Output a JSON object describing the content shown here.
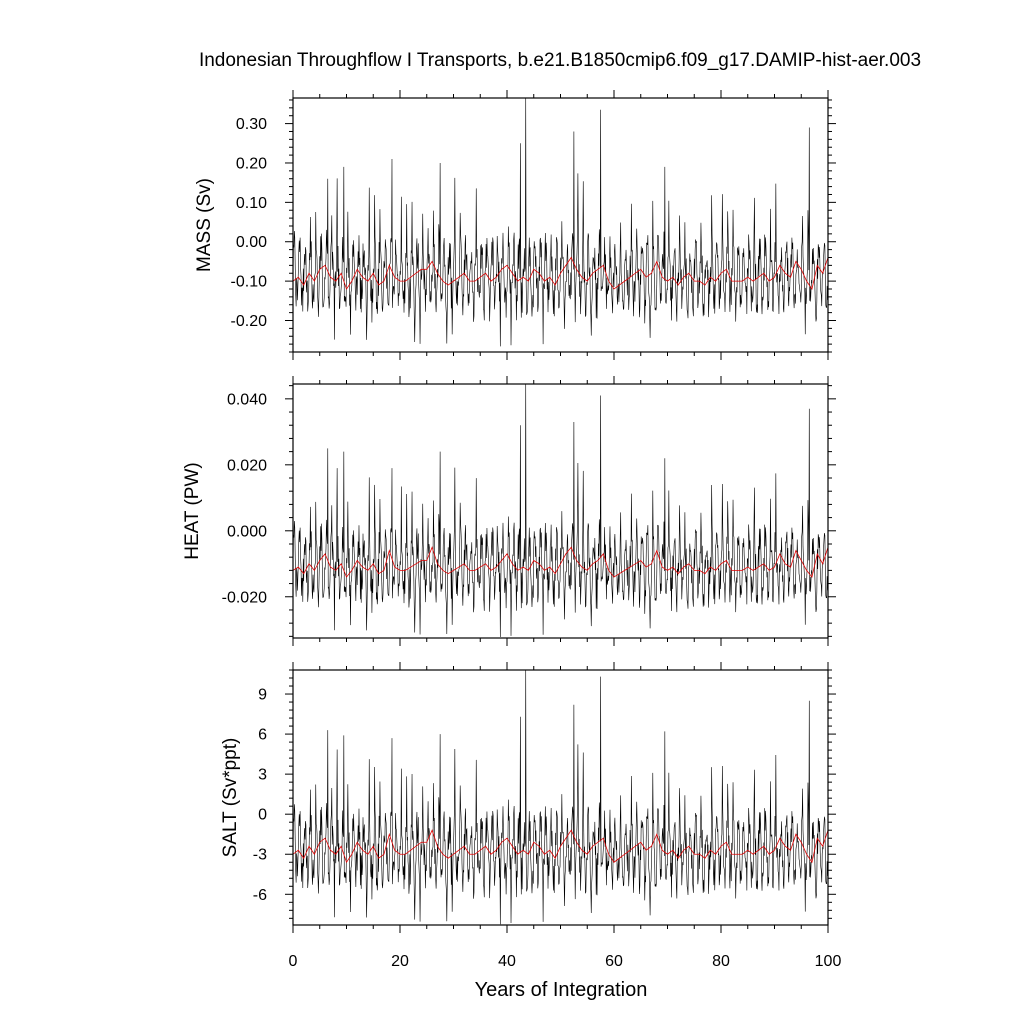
{
  "chart_data": {
    "type": "line",
    "title": "Indonesian Throughflow I Transports, b.e21.B1850cmip6.f09_g17.DAMIP-hist-aer.003",
    "xlabel": "Years of Integration",
    "xlim": [
      0,
      100
    ],
    "x_ticks": [
      0,
      20,
      40,
      60,
      80,
      100
    ],
    "x_tick_labels": [
      "0",
      "20",
      "40",
      "60",
      "80",
      "100"
    ],
    "colors": {
      "monthly": "#000000",
      "annual": "#e00000"
    },
    "panels": [
      {
        "id": "mass",
        "ylabel": "MASS (Sv)",
        "ylim": [
          -0.28,
          0.365
        ],
        "y_ticks": [
          -0.2,
          -0.1,
          0.0,
          0.1,
          0.2,
          0.3
        ],
        "y_tick_labels": [
          "-0.20",
          "-0.10",
          "0.00",
          "0.10",
          "0.20",
          "0.30"
        ],
        "mean": -0.085,
        "amplitude": 0.075,
        "spikes": [
          [
            6,
            0.16
          ],
          [
            9,
            0.19
          ],
          [
            18,
            0.21
          ],
          [
            27,
            0.2
          ],
          [
            42,
            0.25
          ],
          [
            43,
            0.365
          ],
          [
            52,
            0.28
          ],
          [
            57,
            0.335
          ],
          [
            69,
            0.19
          ],
          [
            96,
            0.29
          ]
        ],
        "annual": [
          -0.1,
          -0.09,
          -0.11,
          -0.08,
          -0.1,
          -0.07,
          -0.06,
          -0.09,
          -0.1,
          -0.08,
          -0.12,
          -0.1,
          -0.07,
          -0.09,
          -0.1,
          -0.08,
          -0.11,
          -0.1,
          -0.06,
          -0.09,
          -0.1,
          -0.1,
          -0.09,
          -0.08,
          -0.07,
          -0.07,
          -0.05,
          -0.08,
          -0.1,
          -0.11,
          -0.1,
          -0.09,
          -0.08,
          -0.1,
          -0.1,
          -0.09,
          -0.08,
          -0.1,
          -0.09,
          -0.07,
          -0.06,
          -0.08,
          -0.1,
          -0.09,
          -0.1,
          -0.07,
          -0.08,
          -0.1,
          -0.09,
          -0.11,
          -0.08,
          -0.06,
          -0.04,
          -0.07,
          -0.09,
          -0.1,
          -0.08,
          -0.07,
          -0.06,
          -0.1,
          -0.12,
          -0.11,
          -0.1,
          -0.09,
          -0.08,
          -0.07,
          -0.09,
          -0.08,
          -0.05,
          -0.09,
          -0.1,
          -0.09,
          -0.11,
          -0.09,
          -0.08,
          -0.1,
          -0.1,
          -0.11,
          -0.09,
          -0.1,
          -0.08,
          -0.07,
          -0.1,
          -0.1,
          -0.1,
          -0.09,
          -0.1,
          -0.09,
          -0.08,
          -0.1,
          -0.09,
          -0.06,
          -0.08,
          -0.09,
          -0.05,
          -0.07,
          -0.1,
          -0.12,
          -0.06,
          -0.08,
          -0.04
        ]
      },
      {
        "id": "heat",
        "ylabel": "HEAT (PW)",
        "ylim": [
          -0.0325,
          0.0445
        ],
        "y_ticks": [
          -0.02,
          0.0,
          0.02,
          0.04
        ],
        "y_tick_labels": [
          "-0.020",
          "0.000",
          "0.020",
          "0.040"
        ],
        "mean": -0.0105,
        "amplitude": 0.009,
        "spikes": [
          [
            6,
            0.025
          ],
          [
            9,
            0.024
          ],
          [
            18,
            0.019
          ],
          [
            27,
            0.024
          ],
          [
            42,
            0.032
          ],
          [
            43,
            0.0445
          ],
          [
            52,
            0.033
          ],
          [
            57,
            0.041
          ],
          [
            69,
            0.022
          ],
          [
            96,
            0.037
          ]
        ],
        "annual": [
          -0.012,
          -0.011,
          -0.013,
          -0.01,
          -0.012,
          -0.009,
          -0.007,
          -0.011,
          -0.012,
          -0.01,
          -0.014,
          -0.012,
          -0.009,
          -0.011,
          -0.012,
          -0.01,
          -0.013,
          -0.012,
          -0.006,
          -0.011,
          -0.012,
          -0.012,
          -0.011,
          -0.01,
          -0.009,
          -0.009,
          -0.005,
          -0.01,
          -0.012,
          -0.013,
          -0.012,
          -0.011,
          -0.01,
          -0.012,
          -0.012,
          -0.011,
          -0.01,
          -0.012,
          -0.011,
          -0.009,
          -0.007,
          -0.01,
          -0.012,
          -0.011,
          -0.012,
          -0.009,
          -0.01,
          -0.012,
          -0.011,
          -0.013,
          -0.01,
          -0.007,
          -0.005,
          -0.009,
          -0.011,
          -0.012,
          -0.01,
          -0.009,
          -0.007,
          -0.012,
          -0.014,
          -0.013,
          -0.012,
          -0.011,
          -0.01,
          -0.009,
          -0.011,
          -0.01,
          -0.006,
          -0.011,
          -0.012,
          -0.011,
          -0.013,
          -0.011,
          -0.01,
          -0.012,
          -0.012,
          -0.013,
          -0.011,
          -0.012,
          -0.01,
          -0.009,
          -0.012,
          -0.012,
          -0.012,
          -0.011,
          -0.012,
          -0.011,
          -0.01,
          -0.012,
          -0.011,
          -0.007,
          -0.01,
          -0.011,
          -0.006,
          -0.009,
          -0.012,
          -0.014,
          -0.007,
          -0.01,
          -0.005
        ]
      },
      {
        "id": "salt",
        "ylabel": "SALT (Sv*ppt)",
        "ylim": [
          -8.3,
          10.8
        ],
        "y_ticks": [
          -6,
          -3,
          0,
          3,
          6,
          9
        ],
        "y_tick_labels": [
          "-6",
          "-3",
          "0",
          "3",
          "6",
          "9"
        ],
        "mean": -2.7,
        "amplitude": 2.3,
        "spikes": [
          [
            6,
            6.3
          ],
          [
            9,
            5.9
          ],
          [
            18,
            5.7
          ],
          [
            27,
            6.0
          ],
          [
            42,
            7.3
          ],
          [
            43,
            10.8
          ],
          [
            52,
            8.2
          ],
          [
            57,
            10.3
          ],
          [
            69,
            6.2
          ],
          [
            96,
            8.5
          ]
        ],
        "annual": [
          -3.0,
          -2.7,
          -3.3,
          -2.4,
          -3.0,
          -2.1,
          -1.8,
          -2.7,
          -3.0,
          -2.4,
          -3.6,
          -3.0,
          -2.1,
          -2.7,
          -3.0,
          -2.4,
          -3.3,
          -3.0,
          -1.5,
          -2.7,
          -3.0,
          -3.0,
          -2.7,
          -2.4,
          -2.1,
          -2.1,
          -1.2,
          -2.4,
          -3.0,
          -3.3,
          -3.0,
          -2.7,
          -2.4,
          -3.0,
          -3.0,
          -2.7,
          -2.4,
          -3.0,
          -2.7,
          -2.1,
          -1.8,
          -2.4,
          -3.0,
          -2.7,
          -3.0,
          -2.1,
          -2.4,
          -3.0,
          -2.7,
          -3.3,
          -2.4,
          -1.8,
          -1.2,
          -2.1,
          -2.7,
          -3.0,
          -2.4,
          -2.1,
          -1.8,
          -3.0,
          -3.6,
          -3.3,
          -3.0,
          -2.7,
          -2.4,
          -2.1,
          -2.7,
          -2.4,
          -1.5,
          -2.7,
          -3.0,
          -2.7,
          -3.3,
          -2.7,
          -2.4,
          -3.0,
          -3.0,
          -3.3,
          -2.7,
          -3.0,
          -2.4,
          -2.1,
          -3.0,
          -3.0,
          -3.0,
          -2.7,
          -3.0,
          -2.7,
          -2.4,
          -3.0,
          -2.7,
          -1.8,
          -2.4,
          -2.7,
          -1.5,
          -2.1,
          -3.0,
          -3.6,
          -1.8,
          -2.4,
          -1.2
        ]
      }
    ]
  }
}
